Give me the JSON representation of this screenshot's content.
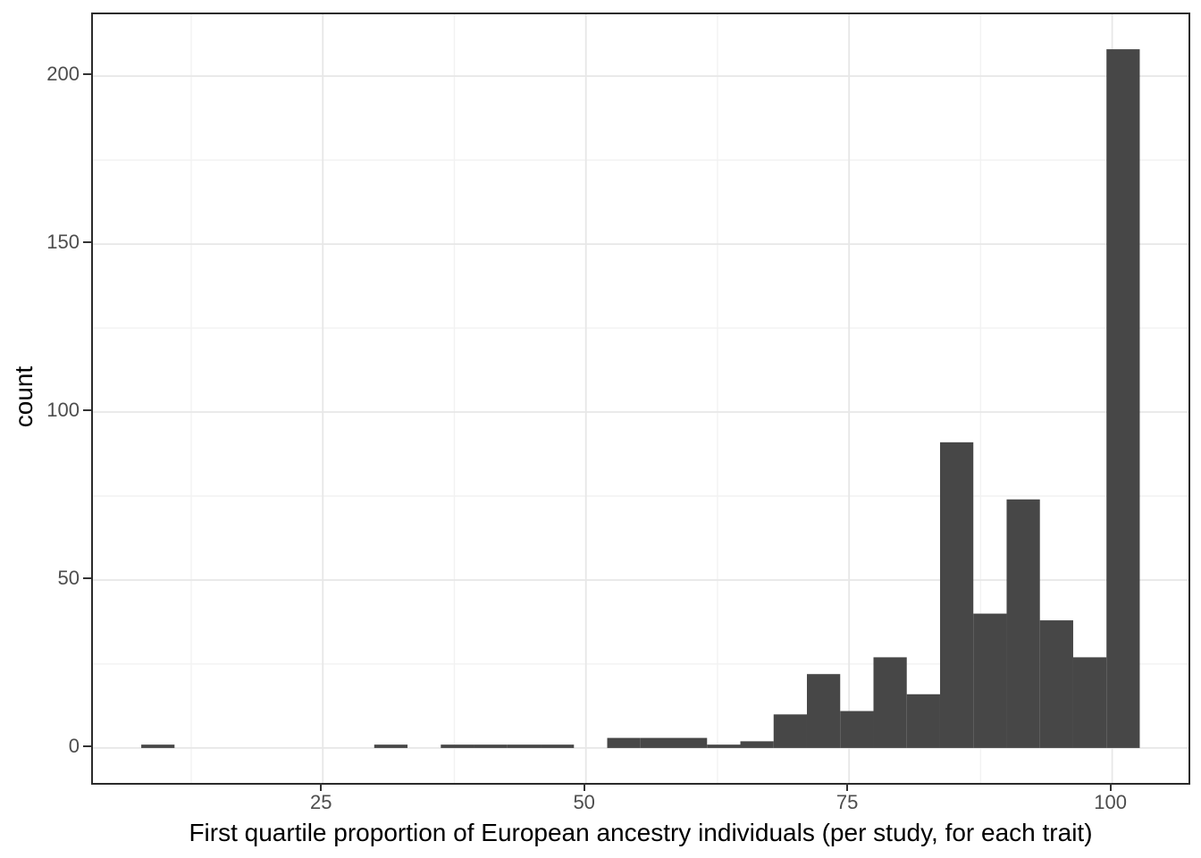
{
  "chart_data": {
    "type": "bar",
    "subtype": "histogram",
    "title": "",
    "xlabel": "First quartile proportion of European ancestry individuals (per study, for each trait)",
    "ylabel": "count",
    "bin_start": 7.75,
    "bin_width": 3.1623,
    "counts": [
      1,
      0,
      0,
      0,
      0,
      0,
      0,
      1,
      0,
      1,
      1,
      1,
      1,
      0,
      3,
      3,
      3,
      1,
      2,
      10,
      22,
      11,
      27,
      16,
      91,
      40,
      74,
      38,
      27,
      208
    ],
    "x_axis": {
      "major_ticks": [
        25,
        50,
        75,
        100
      ],
      "major_labels": [
        "25",
        "50",
        "75",
        "100"
      ],
      "minor_ticks": [
        12.5,
        37.5,
        62.5,
        87.5
      ],
      "range": [
        3.16,
        107.25
      ]
    },
    "y_axis": {
      "major_ticks": [
        0,
        50,
        100,
        150,
        200
      ],
      "major_labels": [
        "0",
        "50",
        "100",
        "150",
        "200"
      ],
      "minor_ticks": [
        25,
        75,
        125,
        175
      ],
      "range": [
        -10.4,
        218.4
      ]
    },
    "grid": true,
    "legend": "none",
    "colors": {
      "bar_fill": "#474747",
      "grid_major": "#e7e7e7",
      "grid_minor": "#f2f2f2",
      "panel_border": "#2b2b2b",
      "tick_mark": "#333333",
      "tick_text": "#4d4d4d",
      "axis_title_text": "#000000",
      "background": "#ffffff"
    }
  }
}
